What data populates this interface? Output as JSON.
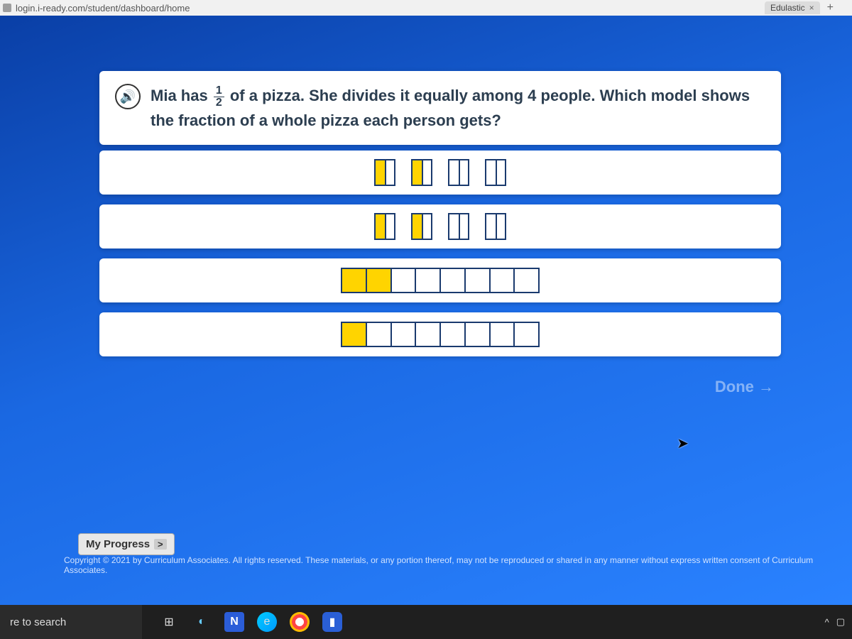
{
  "browser": {
    "url": "login.i-ready.com/student/dashboard/home",
    "tab": {
      "label": "Edulastic",
      "has_close": true
    }
  },
  "question": {
    "text_before": "Mia has ",
    "fraction": {
      "num": "1",
      "den": "2"
    },
    "text_after": " of a pizza. She divides it equally among 4 people. Which model shows the fraction of a whole pizza each person gets?"
  },
  "options": {
    "row1": {
      "type": "separated",
      "count": 4,
      "pattern": [
        "half-left",
        "half-left",
        "split",
        "split"
      ]
    },
    "row2": {
      "type": "separated",
      "count": 4,
      "pattern": [
        "half-left",
        "half-left",
        "split",
        "split"
      ]
    },
    "row3": {
      "type": "bar8",
      "filled": [
        true,
        true,
        false,
        false,
        false,
        false,
        false,
        false
      ]
    },
    "row4": {
      "type": "bar8",
      "filled": [
        true,
        false,
        false,
        false,
        false,
        false,
        false,
        false
      ]
    }
  },
  "buttons": {
    "done": "Done →",
    "progress": "My Progress",
    "progress_chevron": ">"
  },
  "footer": {
    "copyright": "Copyright © 2021 by Curriculum Associates. All rights reserved. These materials, or any portion thereof, may not be reproduced or shared in any manner without express written consent of Curriculum Associates."
  },
  "taskbar": {
    "search": "re to search",
    "tray": {
      "caret": "^",
      "battery": "▢"
    }
  },
  "colors": {
    "accent_yellow": "#ffd400",
    "box_border": "#1a3a6e",
    "bg_grad_a": "#0a3fa6",
    "bg_grad_b": "#2a82ff"
  }
}
